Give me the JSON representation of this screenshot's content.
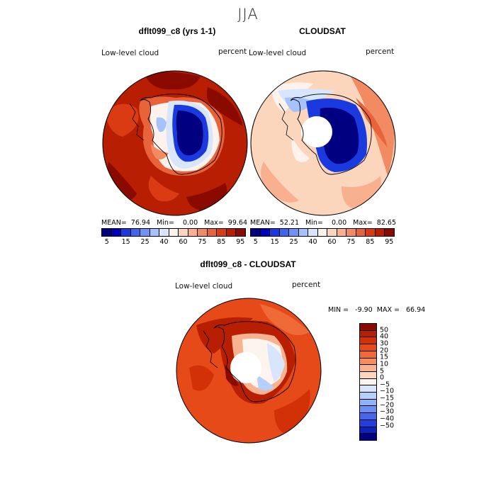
{
  "season": "JJA",
  "panels": [
    {
      "title": "dflt099_c8 (yrs 1-1)",
      "variable": "Low-level cloud",
      "units": "percent",
      "stats": {
        "mean": "76.94",
        "min": "0.00",
        "max": "99.64"
      },
      "stats_text": "MEAN=  76.94   Min=    0.00   Max=  99.64"
    },
    {
      "title": "CLOUDSAT",
      "variable": "Low-level cloud",
      "units": "percent",
      "stats": {
        "mean": "52.21",
        "min": "0.00",
        "max": "82.65"
      },
      "stats_text": "MEAN=  52.21   Min=    0.00   Max=  82.65"
    },
    {
      "title": "dflt099_c8 - CLOUDSAT",
      "variable": "Low-level cloud",
      "units": "percent",
      "stats": {
        "min": "-9.90",
        "max": "66.94"
      },
      "stats_text": "MIN =   -9.90  MAX =   66.94"
    }
  ],
  "abs_colorbar": {
    "colors": [
      "#000080",
      "#0000bb",
      "#1a3ae0",
      "#3d66f0",
      "#6e93f7",
      "#a6c2fa",
      "#d7e6fc",
      "#fef3ec",
      "#fcd5bd",
      "#f8b08e",
      "#f28a62",
      "#e8623a",
      "#da3b13",
      "#b81e02",
      "#8a0a00"
    ],
    "tick_labels": [
      "5",
      "15",
      "25",
      "40",
      "60",
      "75",
      "85",
      "95"
    ]
  },
  "diff_colorbar": {
    "colors": [
      "#8a0a00",
      "#b81e02",
      "#d23007",
      "#e64a18",
      "#f06a38",
      "#f58d5f",
      "#f9b290",
      "#fcd6bd",
      "#fef4ee",
      "#d7e6fc",
      "#b6cffb",
      "#8fb2f8",
      "#6a90f3",
      "#4667ec",
      "#2440dc",
      "#0c22bf",
      "#000080"
    ],
    "tick_labels": [
      "50",
      "40",
      "30",
      "20",
      "15",
      "10",
      "5",
      "0",
      "−5",
      "−10",
      "−15",
      "−20",
      "−30",
      "−40",
      "−50"
    ]
  }
}
